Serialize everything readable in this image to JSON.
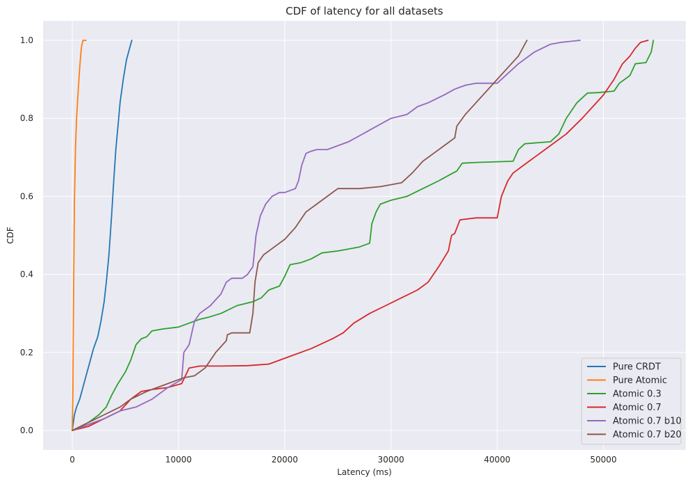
{
  "chart_data": {
    "type": "line",
    "title": "CDF of latency for all datasets",
    "xlabel": "Latency (ms)",
    "ylabel": "CDF",
    "xlim": [
      -2750,
      57750
    ],
    "ylim": [
      -0.05,
      1.05
    ],
    "xticks": [
      0,
      10000,
      20000,
      30000,
      40000,
      50000
    ],
    "yticks": [
      0.0,
      0.2,
      0.4,
      0.6,
      0.8,
      1.0
    ],
    "xtick_labels": [
      "0",
      "10000",
      "20000",
      "30000",
      "40000",
      "50000"
    ],
    "ytick_labels": [
      "0.0",
      "0.2",
      "0.4",
      "0.6",
      "0.8",
      "1.0"
    ],
    "grid": true,
    "background_color": "#eaeaf2",
    "legend_position": "lower right",
    "series": [
      {
        "name": "Pure CRDT",
        "color": "#1f77b4",
        "x": [
          0,
          200,
          400,
          700,
          1000,
          1300,
          1600,
          2000,
          2400,
          2700,
          3000,
          3200,
          3450,
          3700,
          3900,
          4100,
          4300,
          4500,
          4800,
          5100,
          5400,
          5600
        ],
        "y": [
          0.0,
          0.04,
          0.06,
          0.08,
          0.11,
          0.14,
          0.17,
          0.21,
          0.24,
          0.28,
          0.33,
          0.38,
          0.45,
          0.55,
          0.64,
          0.72,
          0.78,
          0.84,
          0.9,
          0.95,
          0.98,
          1.0
        ]
      },
      {
        "name": "Pure Atomic",
        "color": "#ff7f0e",
        "x": [
          0,
          50,
          100,
          150,
          200,
          300,
          400,
          550,
          700,
          850,
          1000,
          1300
        ],
        "y": [
          0.0,
          0.08,
          0.28,
          0.42,
          0.58,
          0.72,
          0.8,
          0.87,
          0.93,
          0.98,
          1.0,
          1.0
        ]
      },
      {
        "name": "Atomic 0.3",
        "color": "#2ca02c",
        "x": [
          0,
          1500,
          2500,
          3200,
          3700,
          4300,
          5000,
          5500,
          6000,
          6500,
          7000,
          7500,
          8500,
          10000,
          11000,
          12000,
          12800,
          14000,
          15500,
          17000,
          17800,
          18500,
          19500,
          20000,
          20500,
          21500,
          22500,
          23500,
          25000,
          27000,
          28000,
          28200,
          28600,
          29000,
          30000,
          31500,
          33000,
          34500,
          35500,
          36200,
          36700,
          38000,
          41500,
          42000,
          42600,
          44000,
          45000,
          45800,
          46500,
          47500,
          48500,
          49500,
          51000,
          51500,
          52000,
          52500,
          53000,
          54000,
          54500,
          54700
        ],
        "y": [
          0.0,
          0.02,
          0.04,
          0.06,
          0.09,
          0.12,
          0.15,
          0.18,
          0.22,
          0.235,
          0.24,
          0.255,
          0.26,
          0.265,
          0.275,
          0.285,
          0.29,
          0.3,
          0.32,
          0.33,
          0.34,
          0.36,
          0.37,
          0.395,
          0.425,
          0.43,
          0.44,
          0.455,
          0.46,
          0.47,
          0.48,
          0.53,
          0.56,
          0.58,
          0.59,
          0.6,
          0.62,
          0.64,
          0.655,
          0.665,
          0.685,
          0.687,
          0.69,
          0.72,
          0.735,
          0.738,
          0.74,
          0.76,
          0.8,
          0.84,
          0.865,
          0.866,
          0.87,
          0.89,
          0.9,
          0.91,
          0.94,
          0.943,
          0.97,
          1.0
        ]
      },
      {
        "name": "Atomic 0.7",
        "color": "#d62728",
        "x": [
          0,
          1500,
          3000,
          4500,
          5500,
          6500,
          7500,
          9000,
          10300,
          11000,
          12000,
          14000,
          16500,
          18500,
          20500,
          22500,
          24500,
          25500,
          26500,
          28000,
          29500,
          31000,
          32500,
          33500,
          34500,
          35400,
          35700,
          36000,
          36500,
          38000,
          40000,
          40400,
          41000,
          41500,
          42500,
          43500,
          45000,
          46500,
          48000,
          49000,
          50000,
          51000,
          51800,
          52500,
          53000,
          53500,
          54200
        ],
        "y": [
          0.0,
          0.01,
          0.03,
          0.05,
          0.08,
          0.1,
          0.105,
          0.11,
          0.12,
          0.16,
          0.165,
          0.165,
          0.166,
          0.17,
          0.19,
          0.21,
          0.235,
          0.25,
          0.275,
          0.3,
          0.32,
          0.34,
          0.36,
          0.38,
          0.42,
          0.46,
          0.5,
          0.505,
          0.54,
          0.545,
          0.545,
          0.6,
          0.64,
          0.66,
          0.68,
          0.7,
          0.73,
          0.76,
          0.8,
          0.83,
          0.86,
          0.9,
          0.94,
          0.96,
          0.98,
          0.995,
          1.0
        ]
      },
      {
        "name": "Atomic 0.7 b10",
        "color": "#9467bd",
        "x": [
          0,
          1500,
          3000,
          4500,
          6000,
          7500,
          9000,
          10300,
          10500,
          11000,
          11500,
          12000,
          13000,
          14000,
          14500,
          15000,
          16000,
          16500,
          17000,
          17300,
          17700,
          18200,
          18800,
          19500,
          20000,
          21000,
          21300,
          21600,
          22000,
          22400,
          23000,
          24000,
          25000,
          26000,
          27000,
          28000,
          29000,
          30000,
          31500,
          32500,
          33500,
          35000,
          36000,
          37000,
          38000,
          40000,
          42000,
          43500,
          45000,
          46000,
          47800
        ],
        "y": [
          0.0,
          0.015,
          0.03,
          0.05,
          0.06,
          0.08,
          0.11,
          0.13,
          0.2,
          0.22,
          0.28,
          0.3,
          0.32,
          0.35,
          0.38,
          0.39,
          0.39,
          0.4,
          0.42,
          0.5,
          0.55,
          0.58,
          0.6,
          0.61,
          0.61,
          0.62,
          0.64,
          0.68,
          0.71,
          0.715,
          0.72,
          0.72,
          0.73,
          0.74,
          0.755,
          0.77,
          0.785,
          0.8,
          0.81,
          0.83,
          0.84,
          0.86,
          0.875,
          0.885,
          0.89,
          0.89,
          0.94,
          0.97,
          0.99,
          0.995,
          1.0
        ]
      },
      {
        "name": "Atomic 0.7 b20",
        "color": "#8c564b",
        "x": [
          0,
          1500,
          3000,
          4500,
          5500,
          7000,
          9000,
          10500,
          11500,
          12500,
          13500,
          14500,
          14600,
          15000,
          16000,
          16700,
          17000,
          17200,
          17500,
          18000,
          19000,
          20000,
          21000,
          22000,
          23000,
          24000,
          25000,
          27000,
          29000,
          30000,
          31000,
          32000,
          33000,
          34000,
          35000,
          36000,
          36200,
          37000,
          38000,
          39000,
          40000,
          41000,
          42000,
          42800
        ],
        "y": [
          0.0,
          0.02,
          0.04,
          0.06,
          0.08,
          0.1,
          0.12,
          0.135,
          0.14,
          0.16,
          0.2,
          0.23,
          0.245,
          0.25,
          0.25,
          0.25,
          0.3,
          0.38,
          0.43,
          0.45,
          0.47,
          0.49,
          0.52,
          0.56,
          0.58,
          0.6,
          0.62,
          0.62,
          0.625,
          0.63,
          0.635,
          0.66,
          0.69,
          0.71,
          0.73,
          0.75,
          0.78,
          0.81,
          0.84,
          0.87,
          0.9,
          0.93,
          0.96,
          1.0
        ]
      }
    ]
  }
}
